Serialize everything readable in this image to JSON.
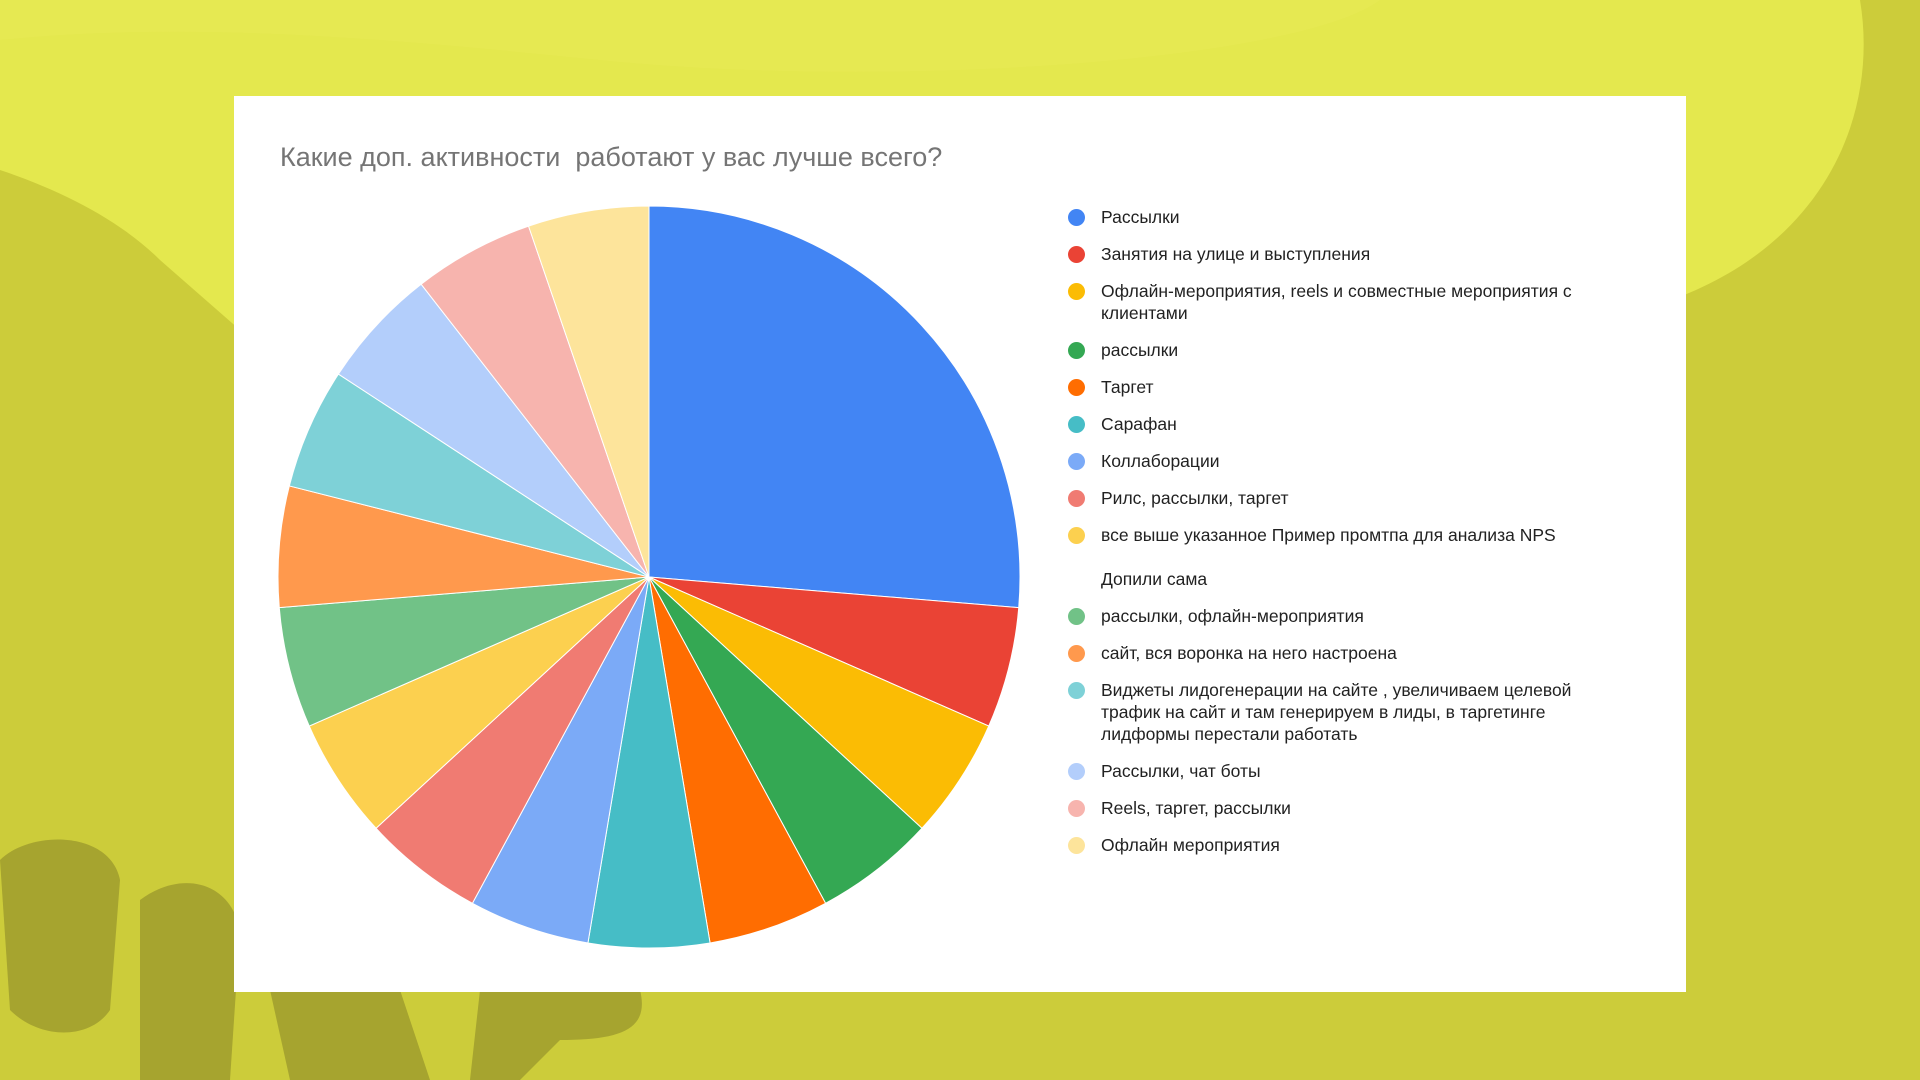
{
  "chart_data": {
    "type": "pie",
    "title": "Какие доп. активности  работают у вас лучше всего?",
    "legend_position": "right",
    "slices": [
      {
        "label": "Рассылки",
        "value": 5,
        "color": "#4285f4"
      },
      {
        "label": "Занятия на улице и выступления",
        "value": 1,
        "color": "#ea4335"
      },
      {
        "label": "Офлайн-мероприятия, reels и совместные мероприятия с клиентами",
        "value": 1,
        "color": "#fbbc04"
      },
      {
        "label": "рассылки",
        "value": 1,
        "color": "#34a853"
      },
      {
        "label": "Таргет",
        "value": 1,
        "color": "#ff6d01"
      },
      {
        "label": "Сарафан",
        "value": 1,
        "color": "#46bdc6"
      },
      {
        "label": "Коллаборации",
        "value": 1,
        "color": "#7baaf7"
      },
      {
        "label": "Рилс, рассылки, таргет",
        "value": 1,
        "color": "#f07b72"
      },
      {
        "label": "все выше указанное Пример промтпа для анализа NPS\n\nДопили сама",
        "value": 1,
        "color": "#fcd04f"
      },
      {
        "label": "рассылки, офлайн-мероприятия",
        "value": 1,
        "color": "#71c287"
      },
      {
        "label": "сайт, вся воронка на него настроена",
        "value": 1,
        "color": "#ff994d"
      },
      {
        "label": "Виджеты лидогенерации на сайте , увеличиваем целевой трафик на сайт и там генерируем в лиды, в таргетинге лидформы перестали работать",
        "value": 1,
        "color": "#7ed1d7"
      },
      {
        "label": "Рассылки, чат боты",
        "value": 1,
        "color": "#b3cefb"
      },
      {
        "label": "Reels, таргет, рассылки",
        "value": 1,
        "color": "#f7b4ae"
      },
      {
        "label": "Офлайн мероприятия",
        "value": 1,
        "color": "#fde49b"
      }
    ]
  }
}
